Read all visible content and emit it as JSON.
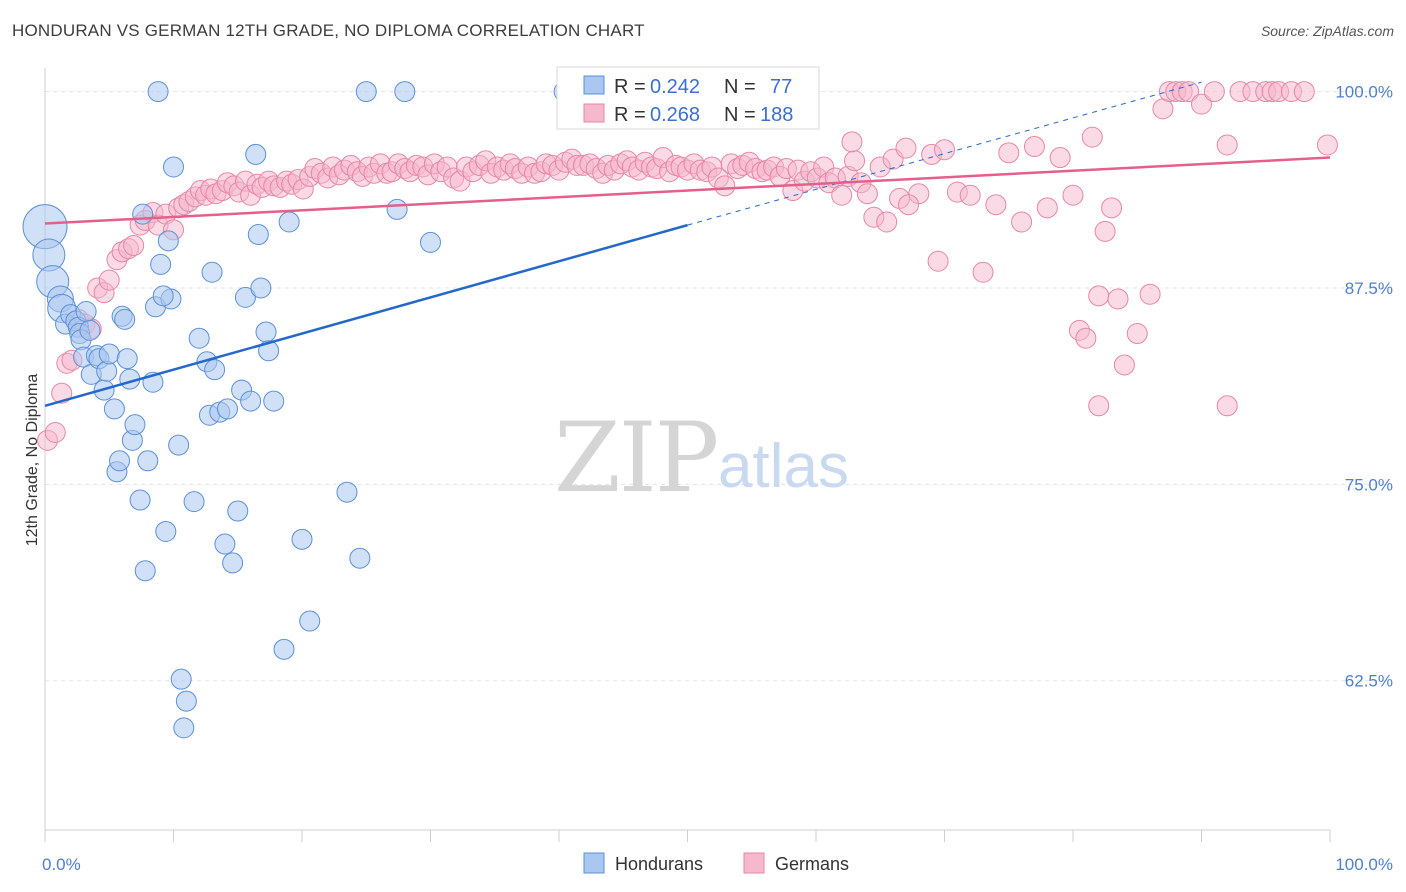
{
  "title": "HONDURAN VS GERMAN 12TH GRADE, NO DIPLOMA CORRELATION CHART",
  "source": "Source: ZipAtlas.com",
  "watermark": {
    "zip": "ZIP",
    "atlas": "atlas"
  },
  "colors": {
    "hondurans_fill": "#a9c7f0",
    "hondurans_stroke": "#5d90d9",
    "hondurans_line": "#2468c9",
    "germans_fill": "#f6b8cc",
    "germans_stroke": "#e886a7",
    "germans_line": "#e55f8a",
    "tick_label": "#4f7fd0",
    "grid": "#dfe3ea"
  },
  "legend_box": {
    "r_label": "R = ",
    "n_label": "N = ",
    "rows": [
      {
        "r": "0.242",
        "n": "77"
      },
      {
        "r": "0.268",
        "n": "188"
      }
    ]
  },
  "chart_data": {
    "type": "scatter",
    "title": "HONDURAN VS GERMAN 12TH GRADE, NO DIPLOMA CORRELATION CHART",
    "xlabel": "",
    "ylabel": "12th Grade, No Diploma",
    "xlim": [
      0,
      100
    ],
    "ylim": [
      53,
      101.5
    ],
    "x_tick_labels": [
      "0.0%",
      "100.0%"
    ],
    "y_ticks": [
      62.5,
      75.0,
      87.5,
      100.0
    ],
    "y_tick_labels": [
      "62.5%",
      "75.0%",
      "87.5%",
      "100.0%"
    ],
    "grid": true,
    "legend_position": "top-center",
    "series": [
      {
        "name": "Hondurans",
        "r": 0.242,
        "n": 77,
        "trend": {
          "x0": 0,
          "y0": 80.0,
          "x1": 50,
          "y1": 91.5,
          "dash_to_x": 90,
          "dash_to_y": 100.6
        },
        "points": [
          [
            0,
            91.4,
            2.2
          ],
          [
            0.3,
            89.6,
            1.6
          ],
          [
            0.6,
            87.9,
            1.6
          ],
          [
            1.2,
            86.8,
            1.3
          ],
          [
            1.3,
            86.2,
            1.4
          ],
          [
            1.6,
            85.2,
            1.0
          ],
          [
            2.0,
            85.8,
            1.0
          ],
          [
            2.4,
            85.4,
            1.0
          ],
          [
            2.6,
            85.0,
            1.0
          ],
          [
            2.7,
            84.6,
            1.0
          ],
          [
            2.8,
            84.2,
            1.0
          ],
          [
            3.0,
            83.1,
            1.0
          ],
          [
            3.2,
            86.0,
            1.0
          ],
          [
            3.5,
            84.8,
            1.0
          ],
          [
            3.6,
            82.0,
            1.0
          ],
          [
            4.0,
            83.2,
            1.0
          ],
          [
            4.2,
            83.0,
            1.0
          ],
          [
            4.6,
            81.0,
            1.0
          ],
          [
            4.8,
            82.2,
            1.0
          ],
          [
            5.0,
            83.3,
            1.0
          ],
          [
            5.4,
            79.8,
            1.0
          ],
          [
            5.6,
            75.8,
            1.0
          ],
          [
            5.8,
            76.5,
            1.0
          ],
          [
            6.0,
            85.7,
            1.0
          ],
          [
            6.4,
            83.0,
            1.0
          ],
          [
            6.6,
            81.7,
            1.0
          ],
          [
            6.8,
            77.8,
            1.0
          ],
          [
            7.0,
            78.8,
            1.0
          ],
          [
            7.4,
            74.0,
            1.0
          ],
          [
            7.6,
            92.2,
            1.0
          ],
          [
            7.8,
            69.5,
            1.0
          ],
          [
            8.0,
            76.5,
            1.0
          ],
          [
            8.4,
            81.5,
            1.0
          ],
          [
            8.6,
            86.3,
            1.0
          ],
          [
            8.8,
            100.0,
            1.0
          ],
          [
            9.0,
            89.0,
            1.0
          ],
          [
            9.4,
            72.0,
            1.0
          ],
          [
            9.6,
            90.5,
            1.0
          ],
          [
            9.8,
            86.8,
            1.0
          ],
          [
            10.0,
            95.2,
            1.0
          ],
          [
            10.4,
            77.5,
            1.0
          ],
          [
            10.6,
            62.6,
            1.0
          ],
          [
            10.8,
            59.5,
            1.0
          ],
          [
            11.0,
            61.2,
            1.0
          ],
          [
            11.6,
            73.9,
            1.0
          ],
          [
            12.0,
            84.3,
            1.0
          ],
          [
            12.6,
            82.8,
            1.0
          ],
          [
            12.8,
            79.4,
            1.0
          ],
          [
            13.0,
            88.5,
            1.0
          ],
          [
            13.2,
            82.3,
            1.0
          ],
          [
            13.6,
            79.6,
            1.0
          ],
          [
            14.0,
            71.2,
            1.0
          ],
          [
            14.2,
            79.8,
            1.0
          ],
          [
            14.6,
            70.0,
            1.0
          ],
          [
            15.0,
            73.3,
            1.0
          ],
          [
            15.3,
            81.0,
            1.0
          ],
          [
            15.6,
            86.9,
            1.0
          ],
          [
            16.0,
            80.3,
            1.0
          ],
          [
            16.4,
            96.0,
            1.0
          ],
          [
            16.6,
            90.9,
            1.0
          ],
          [
            16.8,
            87.5,
            1.0
          ],
          [
            17.2,
            84.7,
            1.0
          ],
          [
            17.4,
            83.5,
            1.0
          ],
          [
            17.8,
            80.3,
            1.0
          ],
          [
            18.6,
            64.5,
            1.0
          ],
          [
            19.0,
            91.7,
            1.0
          ],
          [
            20.0,
            71.5,
            1.0
          ],
          [
            20.6,
            66.3,
            1.0
          ],
          [
            23.5,
            74.5,
            1.0
          ],
          [
            24.5,
            70.3,
            1.0
          ],
          [
            25.0,
            100.0,
            1.0
          ],
          [
            27.4,
            92.5,
            1.0
          ],
          [
            28.0,
            100.0,
            1.0
          ],
          [
            30.0,
            90.4,
            1.0
          ],
          [
            40.4,
            100.0,
            1.0
          ],
          [
            40.8,
            100.0,
            1.0
          ],
          [
            6.2,
            85.5,
            1.0
          ],
          [
            9.2,
            87.0,
            1.0
          ]
        ]
      },
      {
        "name": "Germans",
        "r": 0.268,
        "n": 188,
        "trend": {
          "x0": 0,
          "y0": 91.6,
          "x1": 100,
          "y1": 95.8
        },
        "points": [
          [
            0.2,
            77.8
          ],
          [
            0.8,
            78.3
          ],
          [
            1.3,
            80.8
          ],
          [
            1.7,
            82.7
          ],
          [
            2.1,
            82.9
          ],
          [
            2.6,
            85.5
          ],
          [
            3.1,
            85.2
          ],
          [
            3.6,
            84.9
          ],
          [
            4.1,
            87.5
          ],
          [
            4.6,
            87.2
          ],
          [
            5.0,
            88.0
          ],
          [
            5.6,
            89.3
          ],
          [
            6.0,
            89.8
          ],
          [
            6.5,
            90.0
          ],
          [
            6.9,
            90.2
          ],
          [
            7.4,
            91.5
          ],
          [
            7.8,
            91.8
          ],
          [
            8.4,
            92.3
          ],
          [
            8.8,
            91.5
          ],
          [
            9.4,
            92.2
          ],
          [
            10.0,
            91.2
          ],
          [
            10.4,
            92.6
          ],
          [
            10.8,
            92.8
          ],
          [
            11.2,
            93.0
          ],
          [
            11.7,
            93.3
          ],
          [
            12.1,
            93.7
          ],
          [
            12.5,
            93.4
          ],
          [
            12.9,
            93.8
          ],
          [
            13.3,
            93.5
          ],
          [
            13.8,
            93.7
          ],
          [
            14.2,
            94.2
          ],
          [
            14.7,
            94.0
          ],
          [
            15.1,
            93.6
          ],
          [
            15.6,
            94.3
          ],
          [
            16.0,
            93.4
          ],
          [
            16.5,
            94.1
          ],
          [
            16.9,
            93.9
          ],
          [
            17.4,
            94.3
          ],
          [
            17.8,
            94.0
          ],
          [
            18.3,
            93.9
          ],
          [
            18.8,
            94.3
          ],
          [
            19.2,
            94.1
          ],
          [
            19.7,
            94.4
          ],
          [
            20.1,
            93.8
          ],
          [
            20.6,
            94.6
          ],
          [
            21.0,
            95.1
          ],
          [
            21.5,
            94.8
          ],
          [
            22.0,
            94.5
          ],
          [
            22.4,
            95.2
          ],
          [
            22.9,
            94.7
          ],
          [
            23.3,
            95.0
          ],
          [
            23.8,
            95.3
          ],
          [
            24.3,
            94.9
          ],
          [
            24.7,
            94.6
          ],
          [
            25.2,
            95.2
          ],
          [
            25.6,
            94.8
          ],
          [
            26.1,
            95.4
          ],
          [
            26.6,
            94.8
          ],
          [
            27.0,
            94.9
          ],
          [
            27.5,
            95.4
          ],
          [
            28.0,
            95.1
          ],
          [
            28.4,
            94.9
          ],
          [
            28.9,
            95.3
          ],
          [
            29.4,
            95.2
          ],
          [
            29.8,
            94.7
          ],
          [
            30.3,
            95.4
          ],
          [
            30.8,
            94.9
          ],
          [
            31.3,
            95.2
          ],
          [
            31.8,
            94.5
          ],
          [
            32.3,
            94.3
          ],
          [
            32.8,
            95.2
          ],
          [
            33.3,
            94.9
          ],
          [
            33.8,
            95.3
          ],
          [
            34.3,
            95.6
          ],
          [
            34.7,
            94.8
          ],
          [
            35.2,
            95.2
          ],
          [
            35.7,
            95.0
          ],
          [
            36.2,
            95.4
          ],
          [
            36.6,
            95.1
          ],
          [
            37.1,
            94.8
          ],
          [
            37.6,
            95.2
          ],
          [
            38.1,
            94.8
          ],
          [
            38.6,
            94.9
          ],
          [
            39.0,
            95.4
          ],
          [
            39.5,
            95.3
          ],
          [
            40.0,
            95.0
          ],
          [
            40.5,
            95.5
          ],
          [
            41.0,
            95.7
          ],
          [
            41.4,
            95.3
          ],
          [
            41.9,
            95.3
          ],
          [
            42.4,
            95.4
          ],
          [
            42.9,
            95.1
          ],
          [
            43.4,
            94.8
          ],
          [
            43.8,
            95.3
          ],
          [
            44.3,
            95.0
          ],
          [
            44.8,
            95.4
          ],
          [
            45.3,
            95.6
          ],
          [
            45.7,
            95.2
          ],
          [
            46.2,
            95.0
          ],
          [
            46.7,
            95.5
          ],
          [
            47.2,
            95.2
          ],
          [
            47.6,
            95.1
          ],
          [
            48.1,
            95.8
          ],
          [
            48.6,
            94.9
          ],
          [
            49.1,
            95.3
          ],
          [
            49.5,
            95.2
          ],
          [
            50.0,
            95.0
          ],
          [
            50.5,
            95.4
          ],
          [
            51.0,
            95.0
          ],
          [
            51.5,
            94.9
          ],
          [
            51.9,
            95.2
          ],
          [
            52.4,
            94.5
          ],
          [
            52.9,
            94.0
          ],
          [
            53.4,
            95.4
          ],
          [
            53.9,
            95.1
          ],
          [
            54.3,
            95.3
          ],
          [
            54.8,
            95.5
          ],
          [
            55.3,
            95.1
          ],
          [
            55.8,
            94.9
          ],
          [
            56.2,
            95.0
          ],
          [
            56.7,
            95.2
          ],
          [
            57.2,
            94.6
          ],
          [
            57.7,
            95.1
          ],
          [
            58.2,
            93.7
          ],
          [
            58.6,
            95.0
          ],
          [
            59.1,
            94.3
          ],
          [
            59.6,
            94.9
          ],
          [
            60.1,
            94.5
          ],
          [
            60.6,
            95.2
          ],
          [
            61.0,
            94.2
          ],
          [
            61.5,
            94.5
          ],
          [
            62.0,
            93.4
          ],
          [
            62.5,
            94.6
          ],
          [
            63.0,
            95.6
          ],
          [
            63.5,
            94.2
          ],
          [
            64.0,
            93.5
          ],
          [
            64.5,
            92.0
          ],
          [
            65.0,
            95.2
          ],
          [
            65.5,
            91.7
          ],
          [
            66.0,
            95.7
          ],
          [
            66.5,
            93.2
          ],
          [
            67.0,
            96.4
          ],
          [
            68.0,
            93.5
          ],
          [
            69.0,
            96.0
          ],
          [
            69.5,
            89.2
          ],
          [
            70.0,
            96.3
          ],
          [
            71.0,
            93.6
          ],
          [
            72.0,
            93.4
          ],
          [
            73.0,
            88.5
          ],
          [
            74.0,
            92.8
          ],
          [
            75.0,
            96.1
          ],
          [
            76.0,
            91.7
          ],
          [
            77.0,
            96.5
          ],
          [
            78.0,
            92.6
          ],
          [
            79.0,
            95.8
          ],
          [
            80.0,
            93.4
          ],
          [
            80.5,
            84.8
          ],
          [
            81.0,
            84.3
          ],
          [
            81.5,
            97.1
          ],
          [
            82.0,
            87.0
          ],
          [
            82.5,
            91.1
          ],
          [
            83.0,
            92.6
          ],
          [
            83.5,
            86.8
          ],
          [
            84.0,
            82.6
          ],
          [
            85.0,
            84.6
          ],
          [
            86.0,
            87.1
          ],
          [
            87.0,
            98.9
          ],
          [
            87.5,
            100.0
          ],
          [
            88.0,
            100.0
          ],
          [
            88.5,
            100.0
          ],
          [
            89.0,
            100.0
          ],
          [
            90.0,
            99.2
          ],
          [
            91.0,
            100.0
          ],
          [
            92.0,
            96.6
          ],
          [
            93.0,
            100.0
          ],
          [
            94.0,
            100.0
          ],
          [
            95.0,
            100.0
          ],
          [
            95.5,
            100.0
          ],
          [
            96.0,
            100.0
          ],
          [
            97.0,
            100.0
          ],
          [
            98.0,
            100.0
          ],
          [
            99.8,
            96.6
          ],
          [
            82.0,
            80.0
          ],
          [
            92.0,
            80.0
          ],
          [
            62.8,
            96.8
          ],
          [
            67.2,
            92.8
          ]
        ]
      }
    ]
  },
  "bottom_legend": [
    {
      "label": "Hondurans"
    },
    {
      "label": "Germans"
    }
  ]
}
